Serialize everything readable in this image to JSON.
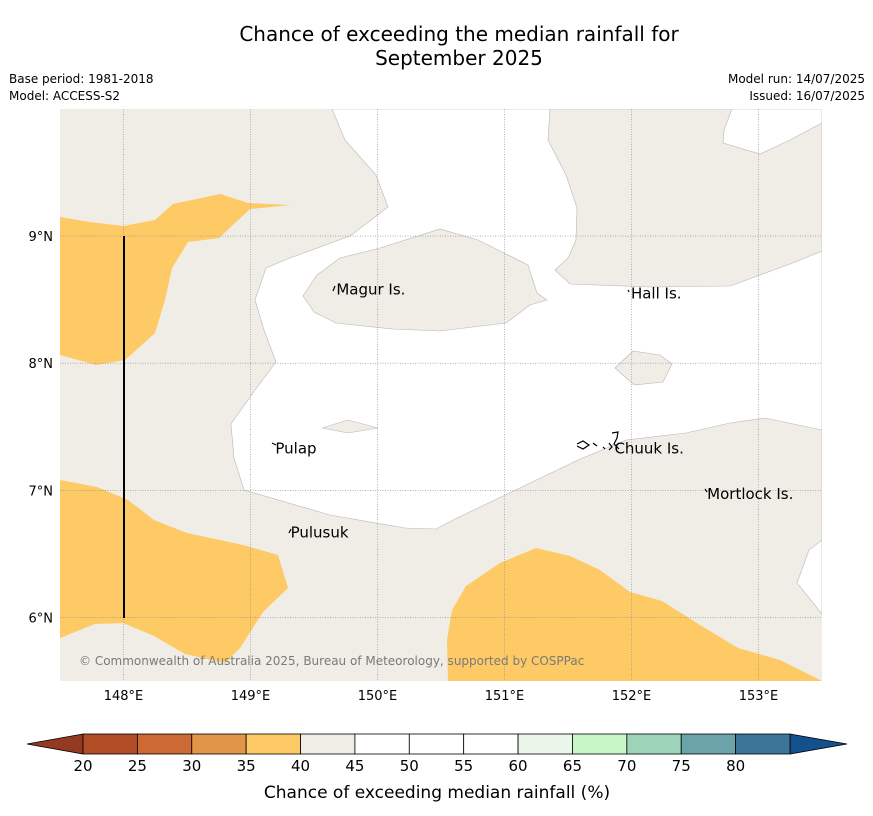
{
  "header": {
    "title_line1": "Chance of exceeding the median rainfall for",
    "title_line2": "September 2025",
    "base_period": "Base period: 1981-2018",
    "model": "Model: ACCESS-S2",
    "model_run": "Model run: 14/07/2025",
    "issued": "Issued: 16/07/2025"
  },
  "map": {
    "lon_range": [
      147.5,
      153.5
    ],
    "lat_range": [
      5.5,
      10.0
    ],
    "lon_ticks": [
      {
        "value": 148,
        "label": "148°E"
      },
      {
        "value": 149,
        "label": "149°E"
      },
      {
        "value": 150,
        "label": "150°E"
      },
      {
        "value": 151,
        "label": "151°E"
      },
      {
        "value": 152,
        "label": "152°E"
      },
      {
        "value": 153,
        "label": "153°E"
      }
    ],
    "lat_ticks": [
      {
        "value": 6,
        "label": "6°N"
      },
      {
        "value": 7,
        "label": "7°N"
      },
      {
        "value": 8,
        "label": "8°N"
      },
      {
        "value": 9,
        "label": "9°N"
      }
    ],
    "gridlines": true,
    "colors": {
      "band_35_40": "#fdca65",
      "band_40_45": "#f0ece6",
      "band_45_55": "#ffffff",
      "contour_line": "#b8b8b8",
      "gridline": "#888888"
    },
    "places": [
      {
        "name": "Magur Is.",
        "lon": 149.66,
        "lat": 8.58
      },
      {
        "name": "Hall Is.",
        "lon": 151.98,
        "lat": 8.55
      },
      {
        "name": "Pulap",
        "lon": 149.18,
        "lat": 7.33
      },
      {
        "name": "Chuuk Is.",
        "lon": 151.85,
        "lat": 7.33
      },
      {
        "name": "Mortlock Is.",
        "lon": 152.58,
        "lat": 6.97
      },
      {
        "name": "Pulusuk",
        "lon": 149.3,
        "lat": 6.67
      }
    ],
    "copyright": "© Commonwealth of Australia 2025, Bureau of Meteorology, supported by COSPPac"
  },
  "colorbar": {
    "label": "Chance of exceeding median rainfall (%)",
    "ticks": [
      "20",
      "25",
      "30",
      "35",
      "40",
      "45",
      "50",
      "55",
      "60",
      "65",
      "70",
      "75",
      "80"
    ],
    "colors": [
      "#b34d28",
      "#cd6935",
      "#e09548",
      "#fdca65",
      "#f0ece6",
      "#ffffff",
      "#ffffff",
      "#ffffff",
      "#ecf5ea",
      "#c8f7c7",
      "#9dd3b8",
      "#6aa3a8",
      "#3c7597"
    ],
    "under_color": "#943a22",
    "over_color": "#13508c"
  }
}
